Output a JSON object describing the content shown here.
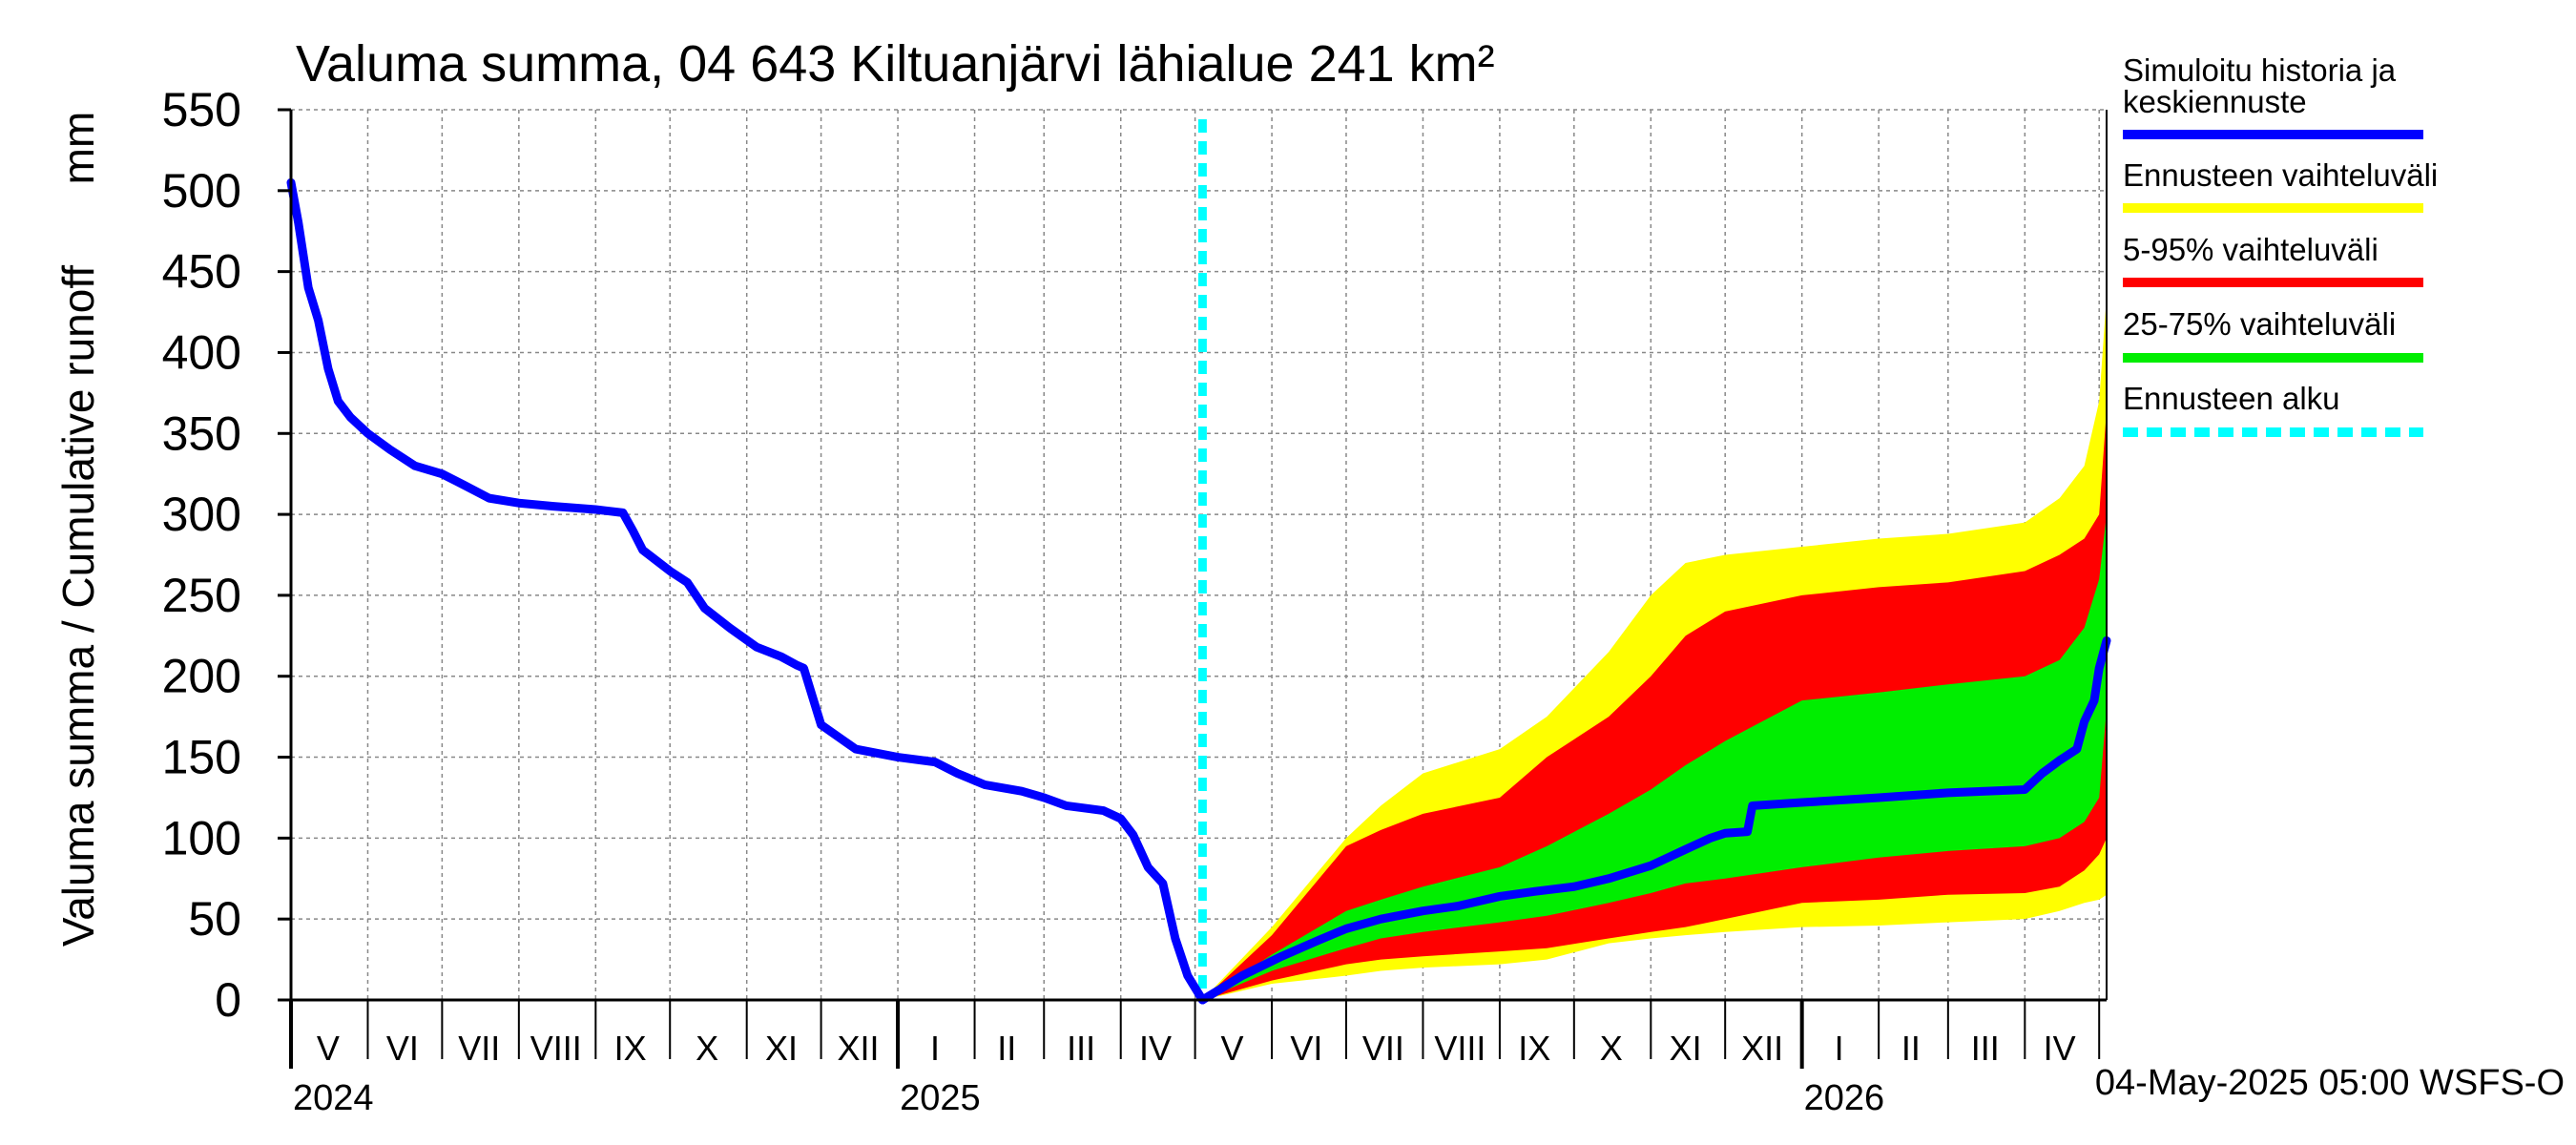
{
  "chart_data": {
    "type": "area",
    "title": "Valuma summa, 04 643 Kiltuanjärvi lähialue 241 km²",
    "ylabel": "Valuma summa / Cumulative runoff",
    "yunit": "mm",
    "ylim": [
      0,
      550
    ],
    "yticks": [
      0,
      50,
      100,
      150,
      200,
      250,
      300,
      350,
      400,
      450,
      500,
      550
    ],
    "xlim": [
      "2024-05-01",
      "2026-05-04"
    ],
    "grid": true,
    "legend_placement": "right",
    "month_labels": [
      {
        "label": "V",
        "mid": "2024-05-16"
      },
      {
        "label": "VI",
        "mid": "2024-06-15"
      },
      {
        "label": "VII",
        "mid": "2024-07-16"
      },
      {
        "label": "VIII",
        "mid": "2024-08-16"
      },
      {
        "label": "IX",
        "mid": "2024-09-15"
      },
      {
        "label": "X",
        "mid": "2024-10-16"
      },
      {
        "label": "XI",
        "mid": "2024-11-15"
      },
      {
        "label": "XII",
        "mid": "2024-12-16"
      },
      {
        "label": "I",
        "mid": "2025-01-16"
      },
      {
        "label": "II",
        "mid": "2025-02-14"
      },
      {
        "label": "III",
        "mid": "2025-03-16"
      },
      {
        "label": "IV",
        "mid": "2025-04-15"
      },
      {
        "label": "V",
        "mid": "2025-05-16"
      },
      {
        "label": "VI",
        "mid": "2025-06-15"
      },
      {
        "label": "VII",
        "mid": "2025-07-16"
      },
      {
        "label": "VIII",
        "mid": "2025-08-16"
      },
      {
        "label": "IX",
        "mid": "2025-09-15"
      },
      {
        "label": "X",
        "mid": "2025-10-16"
      },
      {
        "label": "XI",
        "mid": "2025-11-15"
      },
      {
        "label": "XII",
        "mid": "2025-12-16"
      },
      {
        "label": "I",
        "mid": "2026-01-16"
      },
      {
        "label": "II",
        "mid": "2026-02-14"
      },
      {
        "label": "III",
        "mid": "2026-03-16"
      },
      {
        "label": "IV",
        "mid": "2026-04-15"
      }
    ],
    "month_boundaries": [
      "2024-06-01",
      "2024-07-01",
      "2024-08-01",
      "2024-09-01",
      "2024-10-01",
      "2024-11-01",
      "2024-12-01",
      "2025-01-01",
      "2025-02-01",
      "2025-03-01",
      "2025-04-01",
      "2025-05-01",
      "2025-06-01",
      "2025-07-01",
      "2025-08-01",
      "2025-09-01",
      "2025-10-01",
      "2025-11-01",
      "2025-12-01",
      "2026-01-01",
      "2026-02-01",
      "2026-03-01",
      "2026-04-01",
      "2026-05-01"
    ],
    "year_labels": [
      {
        "label": "2024",
        "date": "2024-05-01"
      },
      {
        "label": "2025",
        "date": "2025-01-01"
      },
      {
        "label": "2026",
        "date": "2026-01-01"
      }
    ],
    "forecast_start": "2025-05-04",
    "history": {
      "name": "Simuloitu historia ja keskiennuste",
      "x": [
        "2024-05-01",
        "2024-05-04",
        "2024-05-08",
        "2024-05-12",
        "2024-05-16",
        "2024-05-20",
        "2024-05-25",
        "2024-06-01",
        "2024-06-10",
        "2024-06-20",
        "2024-07-01",
        "2024-07-10",
        "2024-07-20",
        "2024-08-01",
        "2024-08-15",
        "2024-09-01",
        "2024-09-12",
        "2024-09-16",
        "2024-09-20",
        "2024-10-01",
        "2024-10-08",
        "2024-10-15",
        "2024-10-25",
        "2024-11-05",
        "2024-11-15",
        "2024-11-21",
        "2024-11-24",
        "2024-12-01",
        "2024-12-15",
        "2025-01-01",
        "2025-01-16",
        "2025-01-25",
        "2025-02-05",
        "2025-02-20",
        "2025-03-01",
        "2025-03-10",
        "2025-03-25",
        "2025-04-01",
        "2025-04-06",
        "2025-04-12",
        "2025-04-18",
        "2025-04-23",
        "2025-04-28",
        "2025-05-04"
      ],
      "y": [
        505,
        480,
        440,
        420,
        390,
        370,
        360,
        350,
        340,
        330,
        325,
        318,
        310,
        307,
        305,
        303,
        301,
        290,
        278,
        265,
        258,
        242,
        230,
        218,
        212,
        207,
        205,
        170,
        155,
        150,
        147,
        140,
        133,
        129,
        125,
        120,
        117,
        112,
        102,
        82,
        72,
        38,
        15,
        0
      ]
    },
    "forecast_mean": {
      "name": "Simuloitu historia ja keskiennuste",
      "x": [
        "2025-05-04",
        "2025-05-20",
        "2025-06-05",
        "2025-06-20",
        "2025-07-01",
        "2025-07-15",
        "2025-08-01",
        "2025-08-15",
        "2025-09-01",
        "2025-09-15",
        "2025-10-01",
        "2025-10-15",
        "2025-11-01",
        "2025-11-15",
        "2025-11-25",
        "2025-12-01",
        "2025-12-10",
        "2025-12-12",
        "2026-01-01",
        "2026-02-01",
        "2026-03-01",
        "2026-04-01",
        "2026-04-08",
        "2026-04-15",
        "2026-04-22",
        "2026-04-25",
        "2026-04-29",
        "2026-05-01",
        "2026-05-04"
      ],
      "y": [
        0,
        15,
        27,
        37,
        44,
        50,
        55,
        58,
        64,
        67,
        70,
        75,
        83,
        93,
        100,
        103,
        104,
        120,
        122,
        125,
        128,
        130,
        140,
        148,
        155,
        172,
        185,
        205,
        222
      ]
    },
    "band_total": {
      "name": "Ennusteen vaihteluväli",
      "x": [
        "2025-05-04",
        "2025-06-01",
        "2025-07-01",
        "2025-07-15",
        "2025-08-01",
        "2025-09-01",
        "2025-09-20",
        "2025-10-15",
        "2025-11-01",
        "2025-11-15",
        "2025-12-01",
        "2026-01-01",
        "2026-02-01",
        "2026-03-01",
        "2026-04-01",
        "2026-04-15",
        "2026-04-25",
        "2026-05-01",
        "2026-05-04"
      ],
      "low": [
        0,
        10,
        15,
        18,
        20,
        22,
        25,
        35,
        38,
        40,
        42,
        45,
        46,
        48,
        50,
        55,
        60,
        62,
        65
      ],
      "high": [
        0,
        45,
        100,
        120,
        140,
        155,
        175,
        215,
        250,
        270,
        275,
        280,
        285,
        288,
        295,
        310,
        330,
        370,
        435
      ]
    },
    "band_5_95": {
      "name": "5-95% vaihteluväli",
      "x": [
        "2025-05-04",
        "2025-06-01",
        "2025-07-01",
        "2025-07-15",
        "2025-08-01",
        "2025-09-01",
        "2025-09-20",
        "2025-10-15",
        "2025-11-01",
        "2025-11-15",
        "2025-12-01",
        "2026-01-01",
        "2026-02-01",
        "2026-03-01",
        "2026-04-01",
        "2026-04-15",
        "2026-04-25",
        "2026-05-01",
        "2026-05-04"
      ],
      "low": [
        0,
        12,
        22,
        25,
        27,
        30,
        32,
        38,
        42,
        45,
        50,
        60,
        62,
        65,
        66,
        70,
        80,
        90,
        100
      ],
      "high": [
        0,
        40,
        95,
        105,
        115,
        125,
        150,
        175,
        200,
        225,
        240,
        250,
        255,
        258,
        265,
        275,
        285,
        300,
        365
      ]
    },
    "band_25_75": {
      "name": "25-75% vaihteluväli",
      "x": [
        "2025-05-04",
        "2025-06-01",
        "2025-07-01",
        "2025-07-15",
        "2025-08-01",
        "2025-09-01",
        "2025-09-20",
        "2025-10-15",
        "2025-11-01",
        "2025-11-15",
        "2025-12-01",
        "2026-01-01",
        "2026-02-01",
        "2026-03-01",
        "2026-04-01",
        "2026-04-15",
        "2026-04-25",
        "2026-05-01",
        "2026-05-04"
      ],
      "low": [
        0,
        18,
        32,
        38,
        42,
        48,
        52,
        60,
        66,
        72,
        75,
        82,
        88,
        92,
        95,
        100,
        110,
        125,
        180
      ],
      "high": [
        0,
        28,
        55,
        62,
        70,
        82,
        95,
        115,
        130,
        145,
        160,
        185,
        190,
        195,
        200,
        210,
        230,
        260,
        300
      ]
    },
    "legend": [
      {
        "label": "Simuloitu historia ja keskiennuste",
        "color": "#0000ff",
        "style": "solid"
      },
      {
        "label": "Ennusteen vaihteluväli",
        "color": "#ffff00",
        "style": "solid"
      },
      {
        "label": "5-95% vaihteluväli",
        "color": "#ff0000",
        "style": "solid"
      },
      {
        "label": "25-75% vaihteluväli",
        "color": "#00ee00",
        "style": "solid"
      },
      {
        "label": "Ennusteen alku",
        "color": "#00ffff",
        "style": "dashed"
      }
    ],
    "footer": "04-May-2025 05:00 WSFS-O",
    "colors": {
      "history": "#0000ff",
      "band_total": "#ffff00",
      "band_5_95": "#ff0000",
      "band_25_75": "#00ee00",
      "forecast_line": "#00ffff",
      "grid": "#888888"
    }
  }
}
